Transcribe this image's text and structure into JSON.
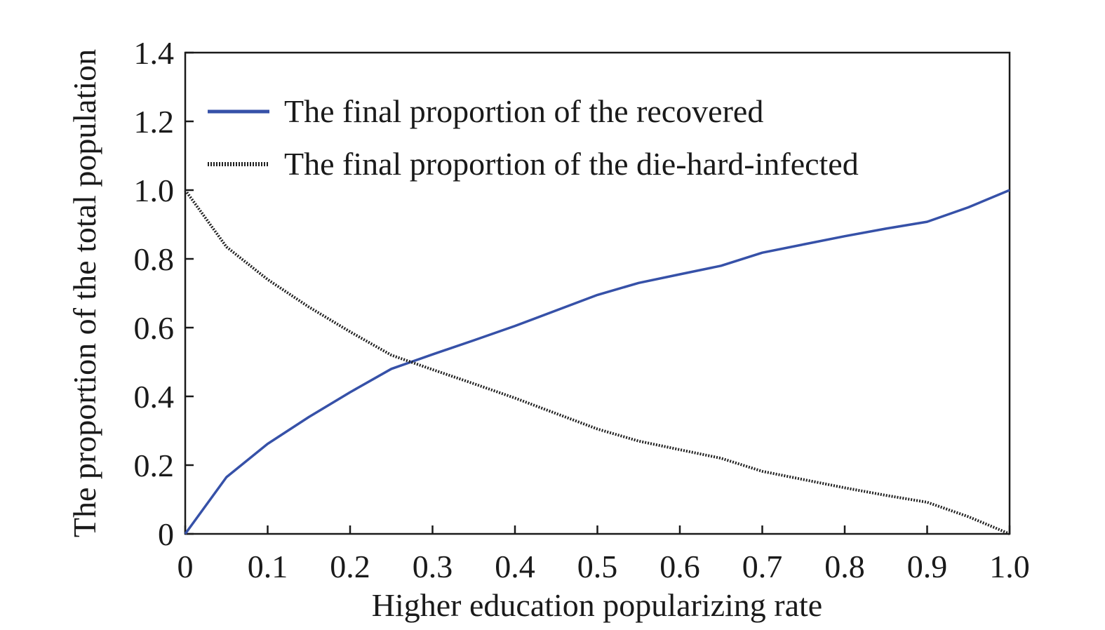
{
  "chart_data": {
    "type": "line",
    "xlabel": "Higher education popularizing rate",
    "ylabel": "The proportion of the total population",
    "xlim": [
      0,
      1.0
    ],
    "ylim": [
      0,
      1.4
    ],
    "xticks": [
      "0",
      "0.1",
      "0.2",
      "0.3",
      "0.4",
      "0.5",
      "0.6",
      "0.7",
      "0.8",
      "0.9",
      "1.0"
    ],
    "yticks": [
      "0",
      "0.2",
      "0.4",
      "0.6",
      "0.8",
      "1.0",
      "1.2",
      "1.4"
    ],
    "grid": false,
    "legend_position": "top-right",
    "x": [
      0,
      0.05,
      0.1,
      0.15,
      0.2,
      0.25,
      0.3,
      0.35,
      0.4,
      0.45,
      0.5,
      0.55,
      0.6,
      0.65,
      0.7,
      0.75,
      0.8,
      0.85,
      0.9,
      0.95,
      1.0
    ],
    "series": [
      {
        "name": "The final proportion of the recovered",
        "color": "#3651a8",
        "style": "solid",
        "values": [
          0,
          0.165,
          0.262,
          0.34,
          0.412,
          0.48,
          0.522,
          0.563,
          0.605,
          0.65,
          0.695,
          0.73,
          0.755,
          0.78,
          0.818,
          0.842,
          0.866,
          0.888,
          0.908,
          0.95,
          1.0
        ]
      },
      {
        "name": "The final proportion of the die-hard-infected",
        "color": "#222222",
        "style": "dotted",
        "values": [
          1.0,
          0.835,
          0.74,
          0.66,
          0.588,
          0.52,
          0.478,
          0.437,
          0.395,
          0.35,
          0.305,
          0.27,
          0.245,
          0.22,
          0.182,
          0.158,
          0.134,
          0.112,
          0.092,
          0.05,
          0
        ]
      }
    ]
  }
}
